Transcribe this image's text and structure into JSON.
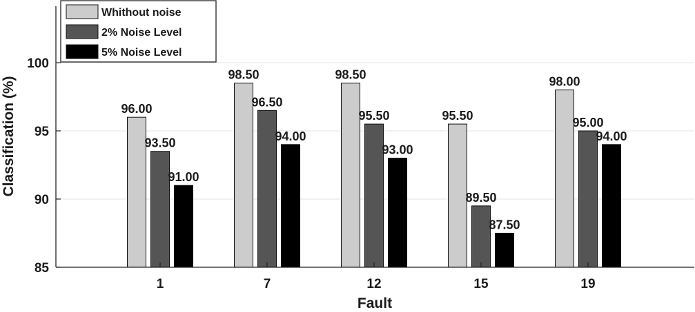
{
  "chart_data": {
    "type": "bar",
    "categories": [
      "1",
      "7",
      "12",
      "15",
      "19"
    ],
    "series": [
      {
        "name": "Whithout noise",
        "values": [
          96.0,
          98.5,
          98.5,
          95.5,
          98.0
        ],
        "color": "#cccccc"
      },
      {
        "name": "2% Noise Level",
        "values": [
          93.5,
          96.5,
          95.5,
          89.5,
          95.0
        ],
        "color": "#555555"
      },
      {
        "name": "5% Noise Level",
        "values": [
          91.0,
          94.0,
          93.0,
          87.5,
          94.0
        ],
        "color": "#000000"
      }
    ],
    "value_labels": [
      [
        "96.00",
        "98.50",
        "98.50",
        "95.50",
        "98.00"
      ],
      [
        "93.50",
        "96.50",
        "95.50",
        "89.50",
        "95.00"
      ],
      [
        "91.00",
        "94.00",
        "93.00",
        "87.50",
        "94.00"
      ]
    ],
    "y_ticks": [
      85,
      90,
      95,
      100
    ],
    "title": "",
    "xlabel": "Fault",
    "ylabel": "Classification (%)",
    "ylim": [
      85,
      104
    ],
    "grid": true,
    "legend_position": "top-left"
  }
}
